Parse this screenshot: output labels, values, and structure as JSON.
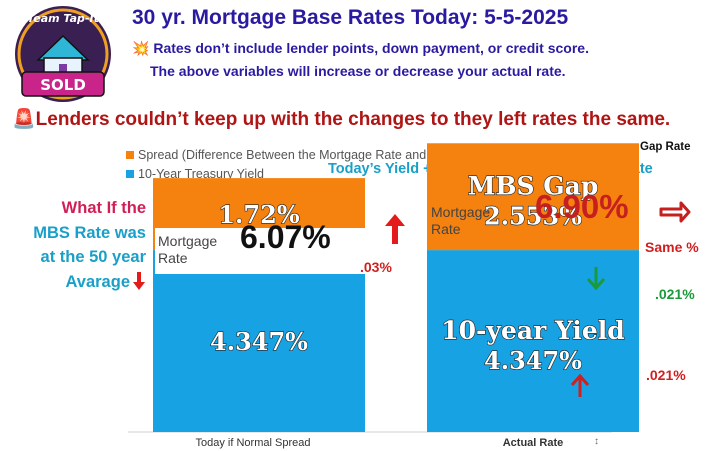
{
  "logo": {
    "top_text": "Team Tap-It",
    "badge_text": "SOLD"
  },
  "header": {
    "title": "30 yr. Mortgage Base Rates Today: 5-5-2025",
    "note1_icon": "💥",
    "note1": "Rates don’t include lender points, down payment, or credit score.",
    "note2": "The above variables will increase or decrease your actual rate.",
    "headline_icon": "🚨",
    "headline": "Lenders couldn’t keep up with the changes to they left rates the same."
  },
  "legend": {
    "spread": "Spread (Difference Between the Mortgage Rate and the 10-Year Yield)",
    "treasury": "10-Year Treasury Yield",
    "gap_rate": "Gap Rate",
    "equation": "Today’s  Yield +  MBS Gap Rate = Mortgage Rate"
  },
  "left_note": {
    "line1": "What If the",
    "line2": "MBS Rate was",
    "line3": "at the 50 year",
    "line4": "Avarage"
  },
  "left_panel": {
    "label1": "Mortgage",
    "label2": "Rate",
    "rate": "6.07%",
    "change": ".03%"
  },
  "right_panel": {
    "label1": "Mortgage",
    "label2": "Rate",
    "rate": "6.90%",
    "same": "Same %",
    "gap_change": ".021%",
    "yield_change": ".021%",
    "gap_title": "MBS Gap",
    "yield_title": "10-year Yield"
  },
  "colors": {
    "spread": "#f5820f",
    "treasury": "#16a2e3",
    "title": "#2a1aa0",
    "accent_red": "#d11f1f",
    "accent_cyan": "#1aa0c8",
    "accent_green": "#1a9a3a"
  },
  "chart_data": {
    "type": "bar",
    "stacked": true,
    "categories": [
      "Today if Normal Spread",
      "Actual Rate"
    ],
    "series": [
      {
        "name": "10-Year Treasury Yield",
        "values": [
          4.347,
          4.347
        ],
        "labels": [
          "4.347%",
          "4.347%"
        ]
      },
      {
        "name": "Spread (Difference Between the Mortgage Rate and the 10-Year Yield)",
        "values": [
          1.72,
          2.553
        ],
        "labels": [
          "1.72%",
          "2.553%"
        ]
      }
    ],
    "title": "",
    "xlabel": "",
    "ylabel": "",
    "ylim": [
      0,
      7.6
    ],
    "grid": false,
    "legend": "top-left"
  }
}
